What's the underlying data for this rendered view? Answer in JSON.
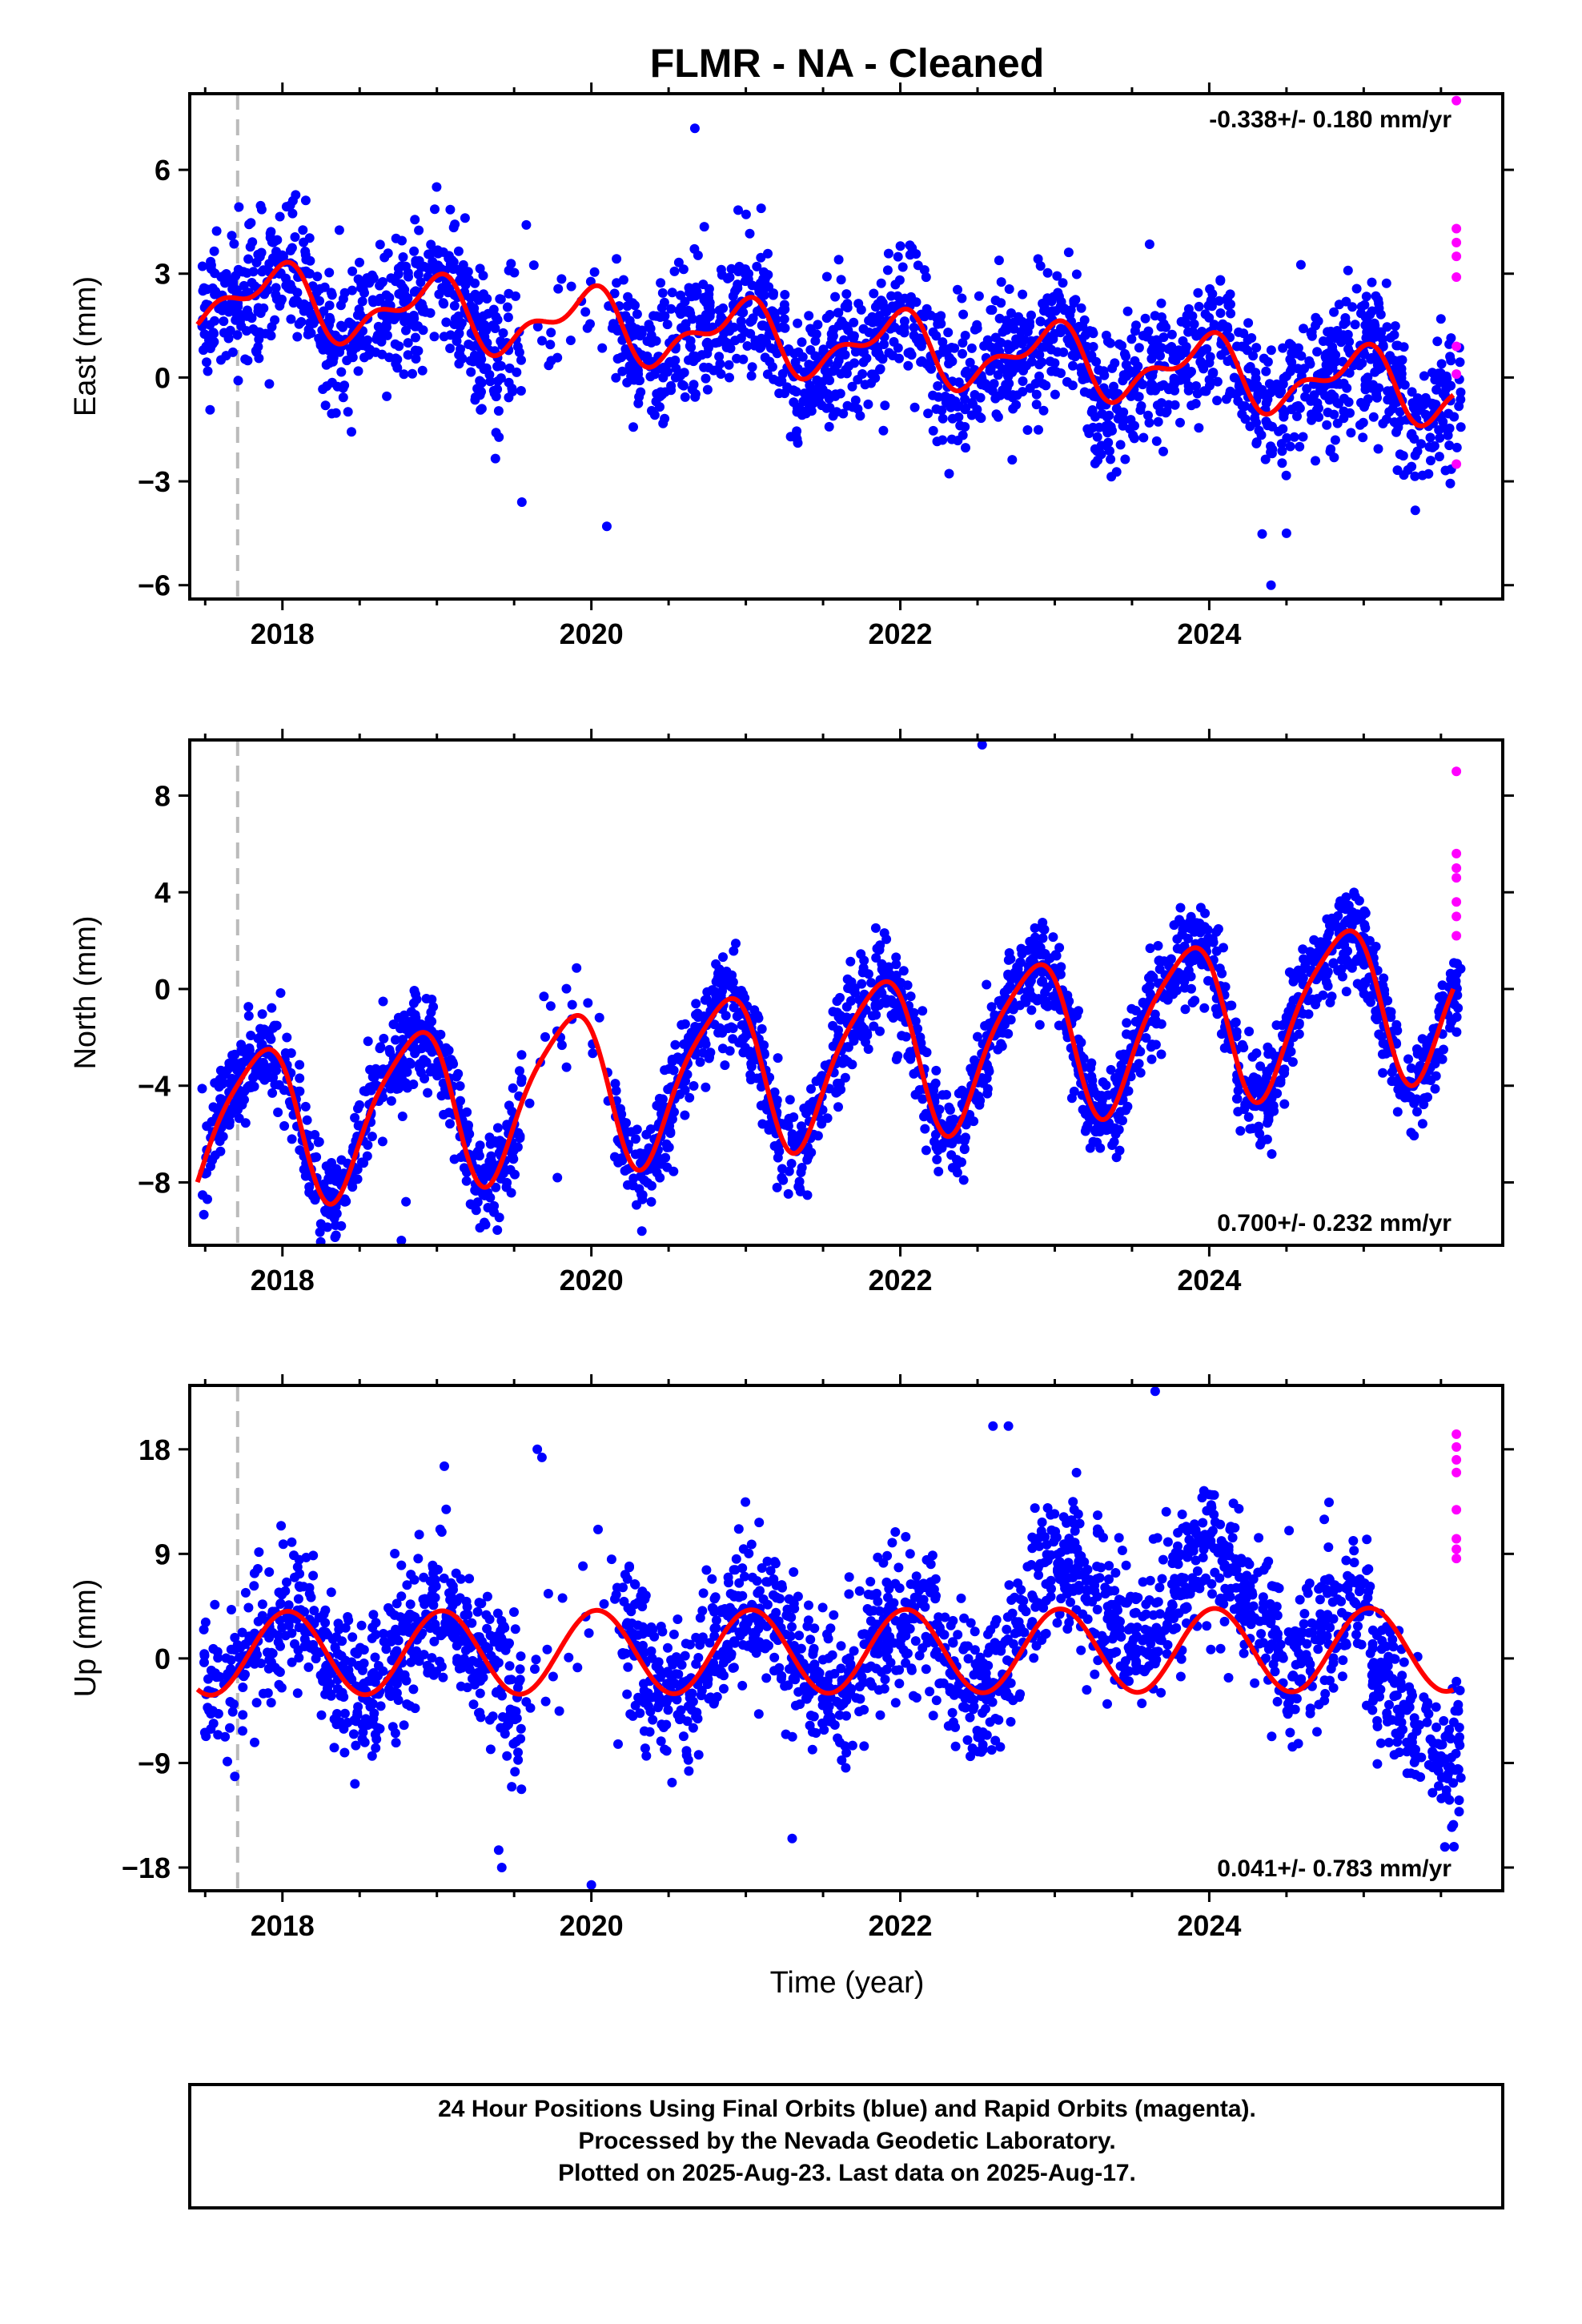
{
  "title": "FLMR  - NA - Cleaned",
  "xlabel": "Time (year)",
  "footer": [
    "24 Hour Positions Using Final Orbits (blue) and Rapid Orbits (magenta).",
    "Processed by the Nevada Geodetic Laboratory.",
    "Plotted on 2025-Aug-23. Last data on 2025-Aug-17."
  ],
  "colors": {
    "final": "#0000ff",
    "rapid": "#ff00ff",
    "fit": "#ff0000",
    "event": "#bbbbbb"
  },
  "chart_data": [
    {
      "type": "scatter",
      "ylabel": "East (mm)",
      "rate_label": "-0.338+/- 0.180 mm/yr",
      "xlim": [
        2017.4,
        2025.9
      ],
      "ylim": [
        -6.4,
        8.2
      ],
      "xticks": [
        2018,
        2020,
        2022,
        2024
      ],
      "yticks": [
        6,
        3,
        0,
        -3,
        -6
      ],
      "event_line_x": 2017.71,
      "data_start": 2017.48,
      "data_end": 2025.63,
      "model": {
        "offset": 1.02,
        "rate": -0.338,
        "annual_amp": 0.85,
        "annual_phase": 1.85,
        "semi_amp": 0.45,
        "semi_phase": 0.6,
        "fit_start": 2017.45,
        "fit_end": 2025.58
      },
      "scatter": {
        "noise": 1.0,
        "points_per_year": 300,
        "gap": [
          2019.55,
          2020.15
        ]
      },
      "series": [
        {
          "name": "Final Orbits",
          "color": "blue"
        },
        {
          "name": "Rapid Orbits",
          "color": "magenta",
          "x": [
            2025.6,
            2025.6,
            2025.6,
            2025.6,
            2025.6,
            2025.6,
            2025.6,
            2025.6
          ],
          "y": [
            8.0,
            4.3,
            3.9,
            3.5,
            2.9,
            0.9,
            0.1,
            -2.5
          ]
        }
      ],
      "outliers": {
        "x": [
          2020.67,
          2019.55,
          2020.1,
          2024.4,
          2024.5
        ],
        "y": [
          7.2,
          -3.6,
          -4.3,
          -6.0,
          -4.5
        ]
      }
    },
    {
      "type": "scatter",
      "ylabel": "North (mm)",
      "rate_label": "0.700+/- 0.232 mm/yr",
      "xlim": [
        2017.4,
        2025.9
      ],
      "ylim": [
        -10.6,
        10.3
      ],
      "xticks": [
        2018,
        2020,
        2022,
        2024
      ],
      "yticks": [
        8,
        4,
        0,
        -4,
        -8
      ],
      "event_line_x": 2017.71,
      "data_start": 2017.48,
      "data_end": 2025.63,
      "model": {
        "offset": -3.0,
        "rate": 0.7,
        "annual_amp": 3.2,
        "annual_phase": 2.55,
        "semi_amp": 0.6,
        "semi_phase": 1.3,
        "fit_start": 2017.45,
        "fit_end": 2025.58
      },
      "scatter": {
        "noise": 1.0,
        "points_per_year": 300,
        "gap": [
          2019.55,
          2020.15
        ]
      },
      "series": [
        {
          "name": "Final Orbits",
          "color": "blue"
        },
        {
          "name": "Rapid Orbits",
          "color": "magenta",
          "x": [
            2025.6,
            2025.6,
            2025.6,
            2025.6,
            2025.6,
            2025.6,
            2025.6
          ],
          "y": [
            9.0,
            5.6,
            5.0,
            4.6,
            3.6,
            3.0,
            2.2
          ]
        }
      ],
      "outliers": {
        "x": [
          2022.53,
          2018.77,
          2019.45,
          2019.78,
          2018.8
        ],
        "y": [
          10.1,
          -10.4,
          -8.2,
          -7.8,
          -8.8
        ]
      }
    },
    {
      "type": "scatter",
      "ylabel": "Up (mm)",
      "rate_label": "0.041+/- 0.783 mm/yr",
      "xlim": [
        2017.4,
        2025.9
      ],
      "ylim": [
        -20,
        23.5
      ],
      "xticks": [
        2018,
        2020,
        2022,
        2024
      ],
      "yticks": [
        18,
        9,
        0,
        -9,
        -18
      ],
      "event_line_x": 2017.71,
      "data_start": 2017.48,
      "data_end": 2025.63,
      "model": {
        "offset": 0.6,
        "rate": 0.041,
        "annual_amp": 3.6,
        "annual_phase": 1.35,
        "semi_amp": 0.0,
        "semi_phase": 0.0,
        "fit_start": 2017.45,
        "fit_end": 2025.58
      },
      "scatter": {
        "noise": 3.2,
        "points_per_year": 300,
        "gap": [
          2019.55,
          2020.15
        ],
        "steps": [
          [
            2022.55,
            7.0
          ],
          [
            2025.05,
            -11.5
          ]
        ]
      },
      "series": [
        {
          "name": "Final Orbits",
          "color": "blue"
        },
        {
          "name": "Rapid Orbits",
          "color": "magenta",
          "x": [
            2025.6,
            2025.6,
            2025.6,
            2025.6,
            2025.6,
            2025.6,
            2025.6,
            2025.6
          ],
          "y": [
            19.3,
            18.2,
            17.1,
            16.0,
            12.8,
            10.3,
            9.4,
            8.6
          ]
        }
      ],
      "outliers": {
        "x": [
          2023.65,
          2022.6,
          2022.7,
          2019.65,
          2019.68,
          2020.0,
          2019.4,
          2019.42,
          2021.3
        ],
        "y": [
          23.0,
          20.0,
          20.0,
          18.0,
          17.3,
          -19.5,
          -16.5,
          -18.0,
          -15.5
        ]
      }
    }
  ]
}
